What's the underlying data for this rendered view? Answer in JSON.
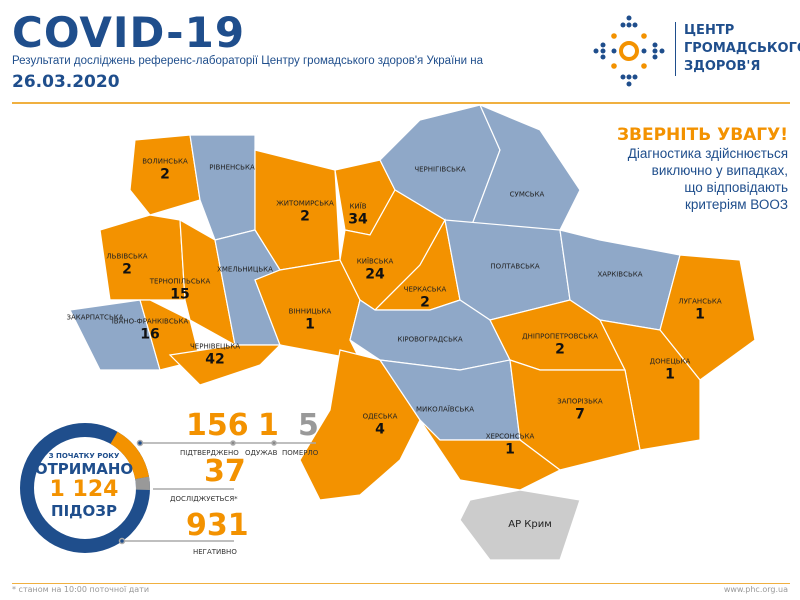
{
  "header": {
    "title": "COVID-19",
    "subtitle": "Результати досліджень референс-лабораторії Центру громадського здоров'я України на",
    "date": "26.03.2020"
  },
  "logo": {
    "line1": "ЦЕНТР",
    "line2": "ГРОМАДСЬКОГО",
    "line3": "ЗДОРОВ'Я"
  },
  "notice": {
    "heading": "ЗВЕРНІТЬ УВАГУ!",
    "lines": [
      "Діагностика здійснюється",
      "виключно у випадках,",
      "що відповідають",
      "критеріям ВООЗ"
    ]
  },
  "colors": {
    "confirmed": "#f39200",
    "no_cases": "#8fa8c8",
    "crimea": "#cccccc",
    "brand": "#1f4e8c"
  },
  "regions": [
    {
      "name": "ВОЛИНСЬКА",
      "value": "2",
      "status": "confirmed"
    },
    {
      "name": "РІВНЕНСЬКА",
      "value": "",
      "status": "none"
    },
    {
      "name": "ЖИТОМИРСЬКА",
      "value": "2",
      "status": "confirmed"
    },
    {
      "name": "КИЇВ",
      "value": "34",
      "status": "confirmed"
    },
    {
      "name": "ЧЕРНІГІВСЬКА",
      "value": "",
      "status": "none"
    },
    {
      "name": "СУМСЬКА",
      "value": "",
      "status": "none"
    },
    {
      "name": "ЛЬВІВСЬКА",
      "value": "2",
      "status": "confirmed"
    },
    {
      "name": "ТЕРНОПІЛЬСЬКА",
      "value": "15",
      "status": "confirmed"
    },
    {
      "name": "ХМЕЛЬНИЦЬКА",
      "value": "",
      "status": "none"
    },
    {
      "name": "ВІННИЦЬКА",
      "value": "1",
      "status": "confirmed"
    },
    {
      "name": "КИЇВСЬКА",
      "value": "24",
      "status": "confirmed"
    },
    {
      "name": "ЧЕРКАСЬКА",
      "value": "2",
      "status": "confirmed"
    },
    {
      "name": "ПОЛТАВСЬКА",
      "value": "",
      "status": "none"
    },
    {
      "name": "ХАРКІВСЬКА",
      "value": "",
      "status": "none"
    },
    {
      "name": "ЛУГАНСЬКА",
      "value": "1",
      "status": "confirmed"
    },
    {
      "name": "ЗАКАРПАТСЬКА",
      "value": "",
      "status": "none"
    },
    {
      "name": "ІВАНО-ФРАНКІВСЬКА",
      "value": "16",
      "status": "confirmed"
    },
    {
      "name": "ЧЕРНІВЕЦЬКА",
      "value": "42",
      "status": "confirmed"
    },
    {
      "name": "КІРОВОГРАДСЬКА",
      "value": "",
      "status": "none"
    },
    {
      "name": "ДНІПРОПЕТРОВСЬКА",
      "value": "2",
      "status": "confirmed"
    },
    {
      "name": "ДОНЕЦЬКА",
      "value": "1",
      "status": "confirmed"
    },
    {
      "name": "ОДЕСЬКА",
      "value": "4",
      "status": "confirmed"
    },
    {
      "name": "МИКОЛАЇВСЬКА",
      "value": "",
      "status": "none"
    },
    {
      "name": "ЗАПОРІЗЬКА",
      "value": "7",
      "status": "confirmed"
    },
    {
      "name": "ХЕРСОНСЬКА",
      "value": "1",
      "status": "confirmed"
    },
    {
      "name": "АР Крим",
      "value": "",
      "status": "crimea"
    }
  ],
  "summary": {
    "donut": {
      "line1": "З ПОЧАТКУ РОКУ",
      "line2": "ОТРИМАНО",
      "total": "1 124",
      "line4": "ПІДОЗР"
    },
    "confirmed": {
      "value": "156",
      "label": "ПІДТВЕРДЖЕНО"
    },
    "recovered": {
      "value": "1",
      "label": "ОДУЖАВ"
    },
    "died": {
      "value": "5",
      "label": "ПОМЕРЛО"
    },
    "testing": {
      "value": "37",
      "label": "ДОСЛІДЖУЄТЬСЯ*"
    },
    "negative": {
      "value": "931",
      "label": "НЕГАТИВНО"
    }
  },
  "footer": {
    "note": "* станом на 10:00 поточної дати",
    "url": "www.phc.org.ua"
  }
}
